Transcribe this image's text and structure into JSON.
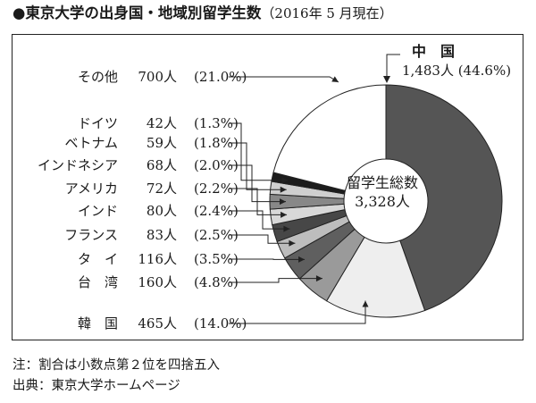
{
  "title": {
    "main": "●東京大学の出身国・地域別留学生数",
    "sub": "（2016年 5 月現在）"
  },
  "center_label": {
    "line1": "留学生総数",
    "line2": "3,328人"
  },
  "notes": [
    "注：割合は小数点第２位を四捨五入",
    "出典：東京大学ホームページ"
  ],
  "chart_data": {
    "type": "pie",
    "variant": "donut",
    "total": 3328,
    "unit": "人",
    "slices": [
      {
        "label": "中　国",
        "count_text": "1,483人",
        "pct_text": "(44.6%)",
        "value": 1483,
        "percent": 44.6,
        "color": "#555555"
      },
      {
        "label": "韓　国",
        "count_text": "465人",
        "pct_text": "(14.0%)",
        "value": 465,
        "percent": 14.0,
        "color": "#eeeeee"
      },
      {
        "label": "台　湾",
        "count_text": "160人",
        "pct_text": "(4.8%)",
        "value": 160,
        "percent": 4.8,
        "color": "#9a9a9a"
      },
      {
        "label": "タ　イ",
        "count_text": "116人",
        "pct_text": "(3.5%)",
        "value": 116,
        "percent": 3.5,
        "color": "#5f5f5f"
      },
      {
        "label": "フランス",
        "count_text": "83人",
        "pct_text": "(2.5%)",
        "value": 83,
        "percent": 2.5,
        "color": "#bdbdbd"
      },
      {
        "label": "インド",
        "count_text": "80人",
        "pct_text": "(2.4%)",
        "value": 80,
        "percent": 2.4,
        "color": "#474747"
      },
      {
        "label": "アメリカ",
        "count_text": "72人",
        "pct_text": "(2.2%)",
        "value": 72,
        "percent": 2.2,
        "color": "#d8d8d8"
      },
      {
        "label": "インドネシア",
        "count_text": "68人",
        "pct_text": "(2.0%)",
        "value": 68,
        "percent": 2.0,
        "color": "#888888"
      },
      {
        "label": "ベトナム",
        "count_text": "59人",
        "pct_text": "(1.8%)",
        "value": 59,
        "percent": 1.8,
        "color": "#cfcfcf"
      },
      {
        "label": "ドイツ",
        "count_text": "42人",
        "pct_text": "(1.3%)",
        "value": 42,
        "percent": 1.3,
        "color": "#1c1c1c"
      },
      {
        "label": "その他",
        "count_text": "700人",
        "pct_text": "(21.0%)",
        "value": 700,
        "percent": 21.0,
        "color": "#ffffff"
      }
    ]
  }
}
